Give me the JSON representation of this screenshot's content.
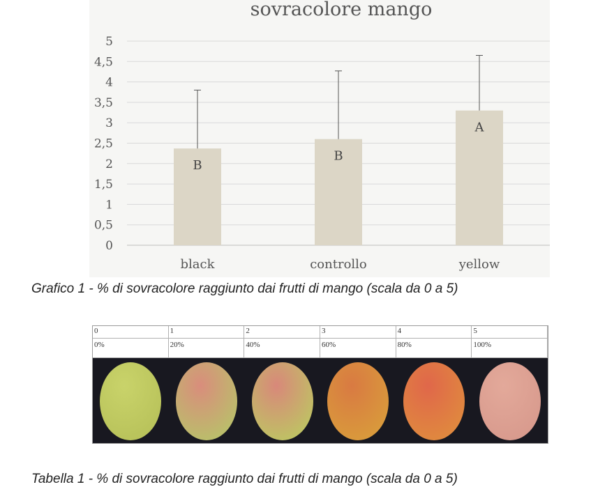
{
  "chart_data": {
    "type": "bar",
    "title": "sovracolore mango",
    "categories": [
      "black",
      "controllo",
      "yellow"
    ],
    "values": [
      2.37,
      2.6,
      3.3
    ],
    "error_upper": [
      3.8,
      4.27,
      4.65
    ],
    "significance_letters": [
      "B",
      "B",
      "A"
    ],
    "ylim": [
      0,
      5
    ],
    "yticks": [
      "0",
      "0,5",
      "1",
      "1,5",
      "2",
      "2,5",
      "3",
      "3,5",
      "4",
      "4,5",
      "5"
    ],
    "grid": true,
    "bar_color": "#dcd6c6"
  },
  "captions": {
    "chart": "Grafico 1 - % di sovracolore raggiunto dai frutti di mango (scala da 0 a 5)",
    "table": "Tabella 1 - % di sovracolore raggiunto dai frutti di mango (scala da 0 a 5)"
  },
  "scale_table": {
    "columns": [
      {
        "grade": "0",
        "percent": "0%",
        "fruit_color": "#b8c25a",
        "blush_color": "#c9d36a"
      },
      {
        "grade": "1",
        "percent": "20%",
        "fruit_color": "#b9c06a",
        "blush_color": "#d98d7c"
      },
      {
        "grade": "2",
        "percent": "40%",
        "fruit_color": "#bec463",
        "blush_color": "#d8887a"
      },
      {
        "grade": "3",
        "percent": "60%",
        "fruit_color": "#d99b3b",
        "blush_color": "#d97a42"
      },
      {
        "grade": "4",
        "percent": "80%",
        "fruit_color": "#e08a3e",
        "blush_color": "#e0674a"
      },
      {
        "grade": "5",
        "percent": "100%",
        "fruit_color": "#d89a8d",
        "blush_color": "#e3a99a"
      }
    ]
  }
}
